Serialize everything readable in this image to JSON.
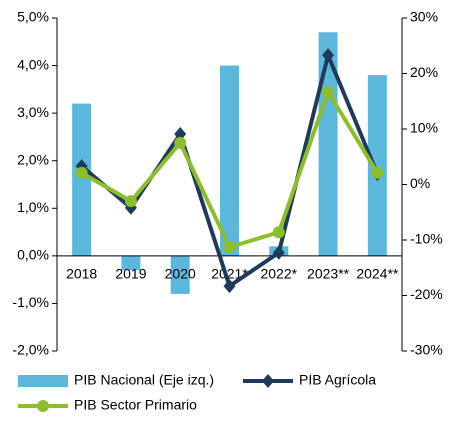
{
  "chart_data": {
    "type": "combo",
    "categories": [
      "2018",
      "2019",
      "2020",
      "2021*",
      "2022*",
      "2023**",
      "2024**"
    ],
    "series": [
      {
        "name": "PIB Nacional (Eje izq.)",
        "type": "bar",
        "color": "#5bb8dc",
        "values": [
          3.2,
          -0.3,
          -0.8,
          4.0,
          0.2,
          4.7,
          3.8
        ]
      },
      {
        "name": "PIB Agrícola",
        "type": "line",
        "marker": "diamond",
        "axis": "y2",
        "color": "#1f3a5a",
        "values": [
          3.3,
          -4.2,
          9.1,
          -18.3,
          -12.3,
          23.3,
          1.9
        ]
      },
      {
        "name": "PIB Sector Primario",
        "type": "line",
        "marker": "circle",
        "axis": "y2",
        "color": "#8cbd2b",
        "values": [
          2.1,
          -3.0,
          7.5,
          -11.3,
          -8.6,
          16.7,
          2.1
        ]
      }
    ],
    "ylim": [
      -2,
      5
    ],
    "yticks": [
      {
        "value": -2,
        "label": "-2,0%"
      },
      {
        "value": -1,
        "label": "-1,0%"
      },
      {
        "value": 0,
        "label": "0,0%"
      },
      {
        "value": 1,
        "label": "1,0%"
      },
      {
        "value": 2,
        "label": "2,0%"
      },
      {
        "value": 3,
        "label": "3,0%"
      },
      {
        "value": 4,
        "label": "4,0%"
      },
      {
        "value": 5,
        "label": "5,0%"
      }
    ],
    "y2lim": [
      -30,
      30
    ],
    "y2ticks": [
      {
        "value": -30,
        "label": "-30%"
      },
      {
        "value": -20,
        "label": "-20%"
      },
      {
        "value": -10,
        "label": "-10%"
      },
      {
        "value": 0,
        "label": "0%"
      },
      {
        "value": 10,
        "label": "10%"
      },
      {
        "value": 20,
        "label": "20%"
      },
      {
        "value": 30,
        "label": "30%"
      }
    ],
    "grid": false
  }
}
